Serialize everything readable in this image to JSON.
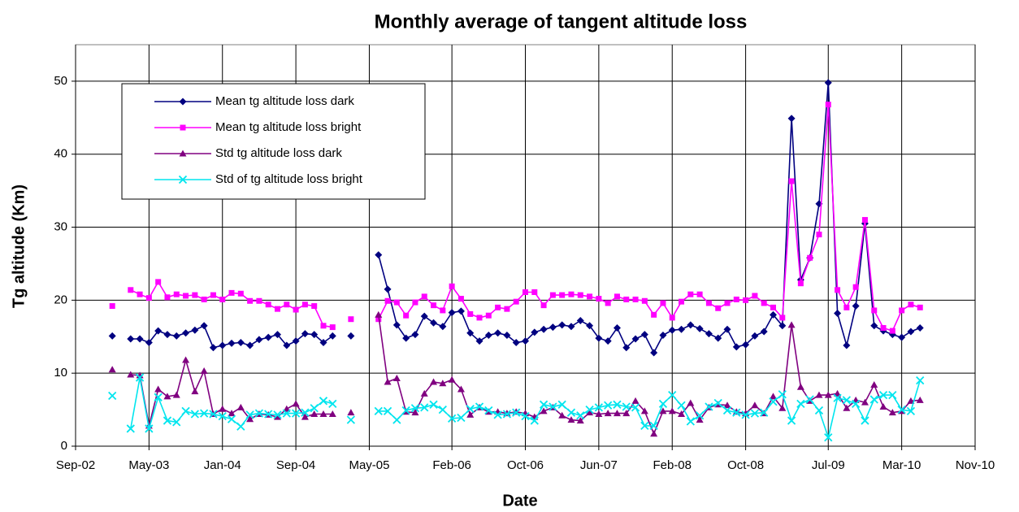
{
  "chart_data": {
    "type": "line",
    "title": "Monthly average of tangent altitude loss",
    "x_label": "Date",
    "y_label": "Tg altitude (Km)",
    "x": [
      "Jan-03",
      "Feb-03",
      "Mar-03",
      "Apr-03",
      "May-03",
      "Jun-03",
      "Jul-03",
      "Aug-03",
      "Sep-03",
      "Oct-03",
      "Nov-03",
      "Dec-03",
      "Jan-04",
      "Feb-04",
      "Mar-04",
      "Apr-04",
      "May-04",
      "Jun-04",
      "Jul-04",
      "Aug-04",
      "Sep-04",
      "Oct-04",
      "Nov-04",
      "Dec-04",
      "Jan-05",
      "Feb-05",
      "Mar-05",
      "Apr-05",
      "May-05",
      "Jun-05",
      "Jul-05",
      "Aug-05",
      "Sep-05",
      "Oct-05",
      "Nov-05",
      "Dec-05",
      "Jan-06",
      "Feb-06",
      "Mar-06",
      "Apr-06",
      "May-06",
      "Jun-06",
      "Jul-06",
      "Aug-06",
      "Sep-06",
      "Oct-06",
      "Nov-06",
      "Dec-06",
      "Jan-07",
      "Feb-07",
      "Mar-07",
      "Apr-07",
      "May-07",
      "Jun-07",
      "Jul-07",
      "Aug-07",
      "Sep-07",
      "Oct-07",
      "Nov-07",
      "Dec-07",
      "Jan-08",
      "Feb-08",
      "Mar-08",
      "Apr-08",
      "May-08",
      "Jun-08",
      "Jul-08",
      "Aug-08",
      "Sep-08",
      "Oct-08",
      "Nov-08",
      "Dec-08",
      "Jan-09",
      "Feb-09",
      "Mar-09",
      "Apr-09",
      "May-09",
      "Jun-09",
      "Jul-09",
      "Aug-09",
      "Sep-09",
      "Oct-09",
      "Nov-09",
      "Dec-09",
      "Jan-10",
      "Feb-10",
      "Mar-10",
      "Apr-10",
      "May-10"
    ],
    "series": [
      {
        "name": "Mean tg altitude loss dark",
        "color": "#000080",
        "marker": "diamond",
        "values": [
          15.1,
          null,
          14.7,
          14.7,
          14.2,
          15.8,
          15.3,
          15.1,
          15.5,
          15.9,
          16.5,
          13.5,
          13.8,
          14.1,
          14.2,
          13.8,
          14.6,
          14.9,
          15.3,
          13.8,
          14.4,
          15.4,
          15.3,
          14.2,
          15.1,
          null,
          15.1,
          null,
          null,
          26.2,
          21.5,
          16.6,
          14.8,
          15.3,
          17.8,
          16.9,
          16.4,
          18.3,
          18.5,
          15.5,
          14.4,
          15.2,
          15.5,
          15.2,
          14.2,
          14.4,
          15.6,
          16.0,
          16.3,
          16.6,
          16.4,
          17.2,
          16.5,
          14.8,
          14.4,
          16.2,
          13.5,
          14.7,
          15.3,
          12.8,
          15.2,
          15.9,
          16.0,
          16.6,
          16.1,
          15.4,
          14.8,
          16.0,
          13.6,
          13.9,
          15.1,
          15.7,
          18.0,
          16.5,
          44.9,
          22.8,
          25.8,
          33.2,
          49.8,
          18.2,
          13.8,
          19.2,
          30.5,
          16.5,
          15.8,
          15.3,
          14.9,
          15.7,
          16.2
        ]
      },
      {
        "name": "Mean tg altitude loss bright",
        "color": "#ff00ff",
        "marker": "square",
        "values": [
          19.2,
          null,
          21.4,
          20.8,
          20.3,
          22.5,
          20.4,
          20.8,
          20.6,
          20.7,
          20.1,
          20.7,
          20.1,
          21.0,
          20.9,
          19.9,
          19.9,
          19.4,
          18.8,
          19.4,
          18.7,
          19.4,
          19.2,
          16.5,
          16.3,
          null,
          17.4,
          null,
          null,
          17.4,
          19.9,
          19.7,
          17.9,
          19.7,
          20.5,
          19.3,
          18.6,
          21.9,
          20.2,
          18.1,
          17.6,
          17.9,
          19.0,
          18.8,
          19.8,
          21.1,
          21.1,
          19.3,
          20.7,
          20.7,
          20.8,
          20.7,
          20.5,
          20.2,
          19.6,
          20.5,
          20.1,
          20.1,
          19.9,
          18.0,
          19.6,
          17.6,
          19.8,
          20.8,
          20.8,
          19.6,
          18.9,
          19.6,
          20.1,
          20.0,
          20.6,
          19.6,
          19.0,
          17.6,
          36.3,
          22.3,
          25.8,
          29.0,
          46.8,
          21.4,
          19.0,
          21.8,
          31.0,
          18.6,
          16.2,
          15.8,
          18.6,
          19.4,
          19.0
        ]
      },
      {
        "name": "Std tg altitude loss dark",
        "color": "#800080",
        "marker": "triangle",
        "values": [
          10.5,
          null,
          9.8,
          9.7,
          2.8,
          7.8,
          6.8,
          7.0,
          11.8,
          7.5,
          10.3,
          4.4,
          5.1,
          4.5,
          5.3,
          3.7,
          4.4,
          4.3,
          4.0,
          5.1,
          5.8,
          4.0,
          4.4,
          4.4,
          4.4,
          null,
          4.6,
          null,
          null,
          18.0,
          8.8,
          9.3,
          4.7,
          4.6,
          7.2,
          8.8,
          8.6,
          9.1,
          7.8,
          4.3,
          5.3,
          4.7,
          4.7,
          4.5,
          4.7,
          4.5,
          4.0,
          4.8,
          5.3,
          4.2,
          3.6,
          3.5,
          4.6,
          4.4,
          4.5,
          4.5,
          4.5,
          6.2,
          4.8,
          1.7,
          4.8,
          4.8,
          4.4,
          5.9,
          3.6,
          5.3,
          5.7,
          5.6,
          4.7,
          4.5,
          5.6,
          4.5,
          6.8,
          5.2,
          16.6,
          8.1,
          6.2,
          7.0,
          7.0,
          7.2,
          5.2,
          6.3,
          6.0,
          8.4,
          5.4,
          4.6,
          4.8,
          6.2,
          6.3
        ]
      },
      {
        "name": "Std of tg altitude loss bright",
        "color": "#00e5ee",
        "marker": "x",
        "values": [
          6.9,
          null,
          2.4,
          9.4,
          2.4,
          6.7,
          3.5,
          3.3,
          4.8,
          4.4,
          4.5,
          4.4,
          4.1,
          3.7,
          2.7,
          4.3,
          4.5,
          4.4,
          4.3,
          4.5,
          4.5,
          4.6,
          5.2,
          6.2,
          5.8,
          null,
          3.6,
          null,
          null,
          4.8,
          4.8,
          3.6,
          4.9,
          5.2,
          5.3,
          5.7,
          5.0,
          3.8,
          3.9,
          5.1,
          5.4,
          4.9,
          4.3,
          4.4,
          4.6,
          4.1,
          3.5,
          5.7,
          5.4,
          5.7,
          4.6,
          4.2,
          5.0,
          5.3,
          5.6,
          5.7,
          5.4,
          5.3,
          2.8,
          2.8,
          5.8,
          7.0,
          5.6,
          3.4,
          4.2,
          5.4,
          5.9,
          4.9,
          4.6,
          4.3,
          4.5,
          4.6,
          6.1,
          7.1,
          3.5,
          5.8,
          6.4,
          4.9,
          1.2,
          6.6,
          6.3,
          5.8,
          3.5,
          6.4,
          7.0,
          7.0,
          5.0,
          4.8,
          9.0
        ]
      }
    ],
    "xlim": [
      "Sep-02",
      "Nov-10"
    ],
    "xticks": [
      "Sep-02",
      "May-03",
      "Jan-04",
      "Sep-04",
      "May-05",
      "Feb-06",
      "Oct-06",
      "Jun-07",
      "Feb-08",
      "Oct-08",
      "Jul-09",
      "Mar-10",
      "Nov-10"
    ],
    "ylim": [
      0,
      55
    ],
    "yticks": [
      0,
      10,
      20,
      30,
      40,
      50
    ],
    "grid": true,
    "legend": "upper left"
  }
}
